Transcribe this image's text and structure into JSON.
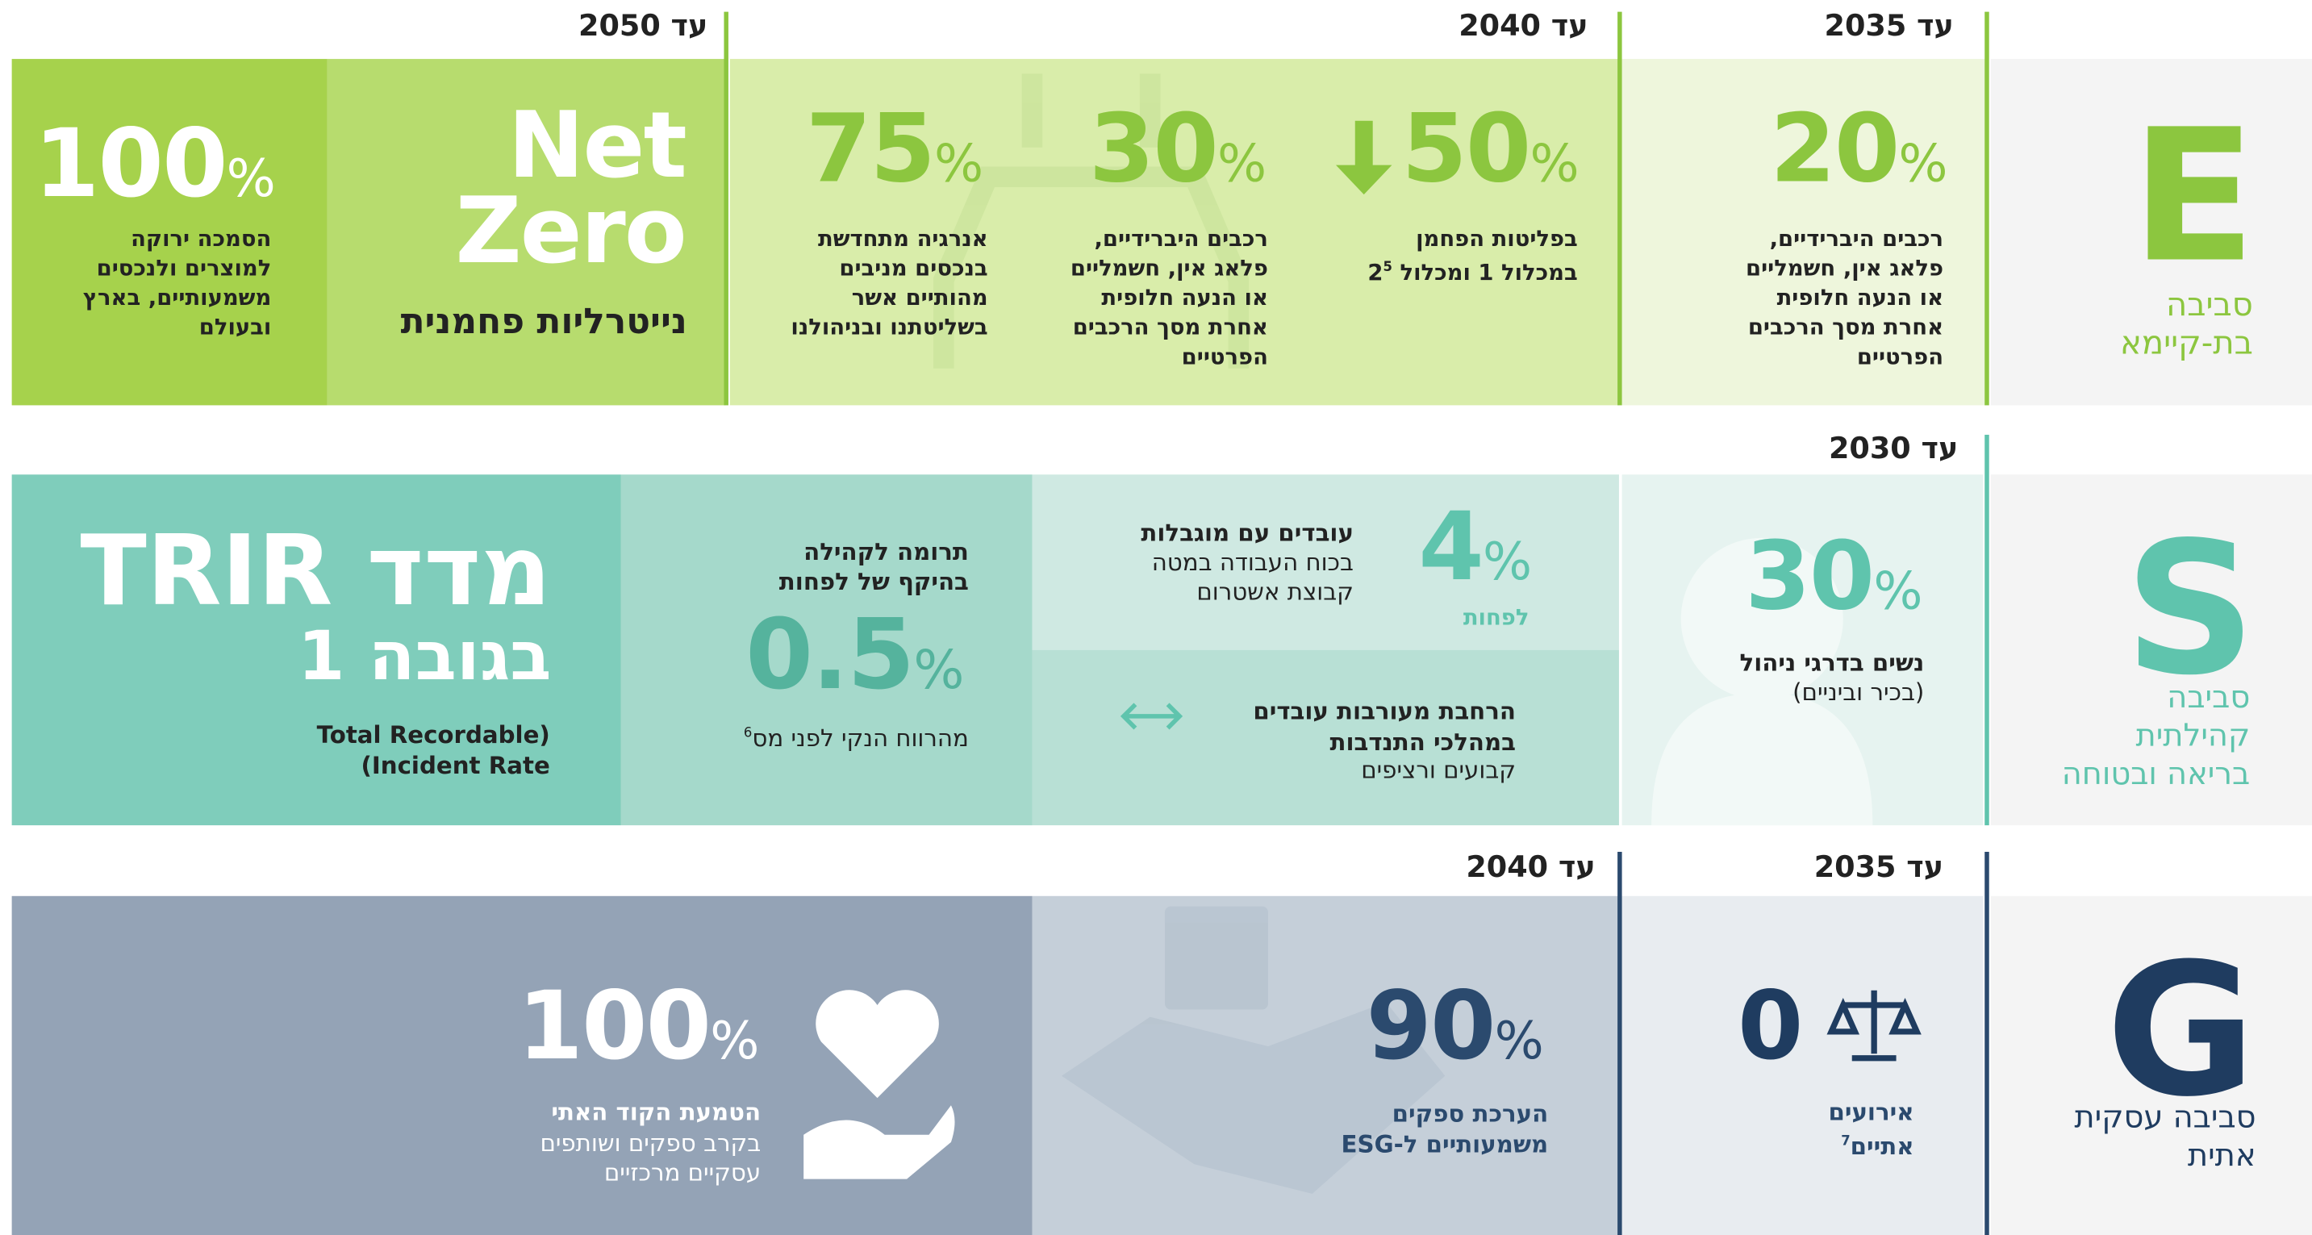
{
  "e": {
    "letter": "E",
    "label": [
      "סביבה",
      "בת-קיימא"
    ],
    "years": [
      "עד 2035",
      "עד 2040",
      "עד 2050"
    ],
    "cells": [
      {
        "value": "20",
        "unit": "%",
        "lines": [
          "רכבים היברידיים,",
          "פלאג אין, חשמליים",
          "או הנעה חלופית",
          "אחרת מסך הרכבים",
          "הפרטיים"
        ]
      },
      {
        "value": "50",
        "unit": "%",
        "lines": [
          "בפליטות הפחמן",
          "במכלול 1 ומכלול 2"
        ],
        "note": "5"
      },
      {
        "value": "30",
        "unit": "%",
        "lines": [
          "רכבים היברידיים,",
          "פלאג אין, חשמליים",
          "או הנעה חלופית",
          "אחרת מסך הרכבים",
          "הפרטיים"
        ]
      },
      {
        "value": "75",
        "unit": "%",
        "lines": [
          "אנרגיה מתחדשת",
          "בנכסים מניבים",
          "מהותיים אשר",
          "בשליטתנו ובניהולנו"
        ]
      },
      {
        "value": [
          "Net",
          "Zero"
        ],
        "lines": [
          "נייטרליות פחמנית"
        ]
      },
      {
        "value": "100",
        "unit": "%",
        "lines": [
          "הסמכה ירוקה",
          "למוצרים ולנכסים",
          "משמעותיים, בארץ",
          "ובעולם"
        ]
      }
    ]
  },
  "s": {
    "letter": "S",
    "label": [
      "סביבה",
      "קהילתית",
      "בריאה ובטוחה"
    ],
    "years": [
      "עד 2030"
    ],
    "cells": [
      {
        "value": "30",
        "unit": "%",
        "title": [
          "נשים בדרגי ניהול"
        ],
        "lines": [
          "(בכיר וביניים)"
        ]
      },
      {
        "value": "4",
        "unit": "%",
        "sub": "לפחות",
        "title": [
          "עובדים עם מוגבלות"
        ],
        "lines": [
          "בכוח העבודה במטה",
          "קבוצת אשטרום"
        ]
      },
      {
        "title": [
          "הרחבת מעורבות עובדים",
          "במהלכי התנדבות"
        ],
        "lines": [
          "קבועים ורציפים"
        ]
      },
      {
        "title": [
          "תרומה לקהילה",
          "בהיקף של לפחות"
        ],
        "value": "0.5",
        "unit": "%",
        "lines": [
          "מהרווח הנקי לפני מס"
        ],
        "note": "6"
      },
      {
        "value": [
          "מדד TRIR",
          "בגובה 1"
        ],
        "lines": [
          "Total Recordable)",
          "(Incident Rate"
        ]
      }
    ]
  },
  "g": {
    "letter": "G",
    "label": [
      "סביבה עסקית",
      "אתית"
    ],
    "years": [
      "עד 2035",
      "עד 2040"
    ],
    "cells": [
      {
        "value": "0",
        "title": [
          "אירועים",
          "אתיים"
        ],
        "note": "7"
      },
      {
        "value": "90",
        "unit": "%",
        "title": [
          "הערכת ספקים",
          "משמעותיים ל-ESG"
        ]
      },
      {
        "value": "100",
        "unit": "%",
        "title": [
          "הטמעת הקוד האתי"
        ],
        "lines": [
          "בקרב ספקים ושותפים",
          "עסקיים מרכזיים"
        ]
      }
    ]
  }
}
